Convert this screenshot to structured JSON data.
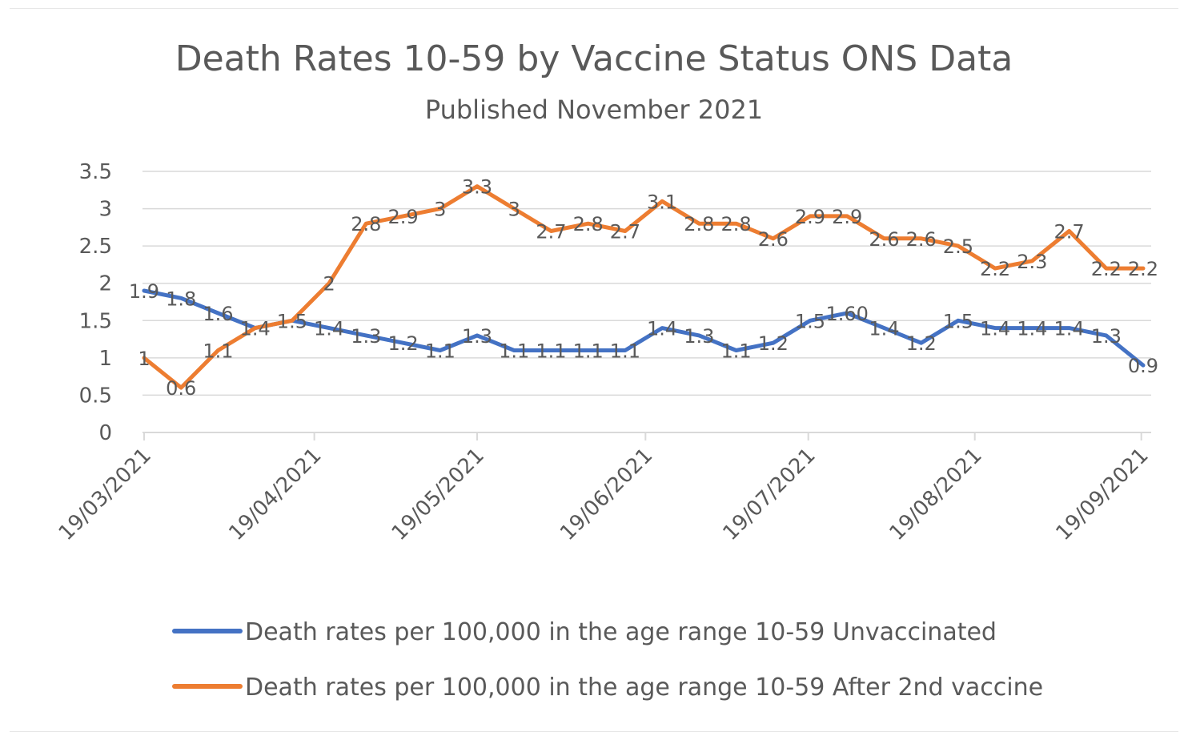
{
  "chart_data": {
    "type": "line",
    "title": "Death Rates 10-59  by Vaccine Status ONS Data",
    "subtitle": "Published November 2021",
    "xlabel": "",
    "ylabel": "",
    "ylim": [
      0,
      3.5
    ],
    "yticks": [
      "0",
      "0.5",
      "1",
      "1.5",
      "2",
      "2.5",
      "3",
      "3.5"
    ],
    "x_tick_labels": [
      "19/03/2021",
      "19/04/2021",
      "19/05/2021",
      "19/06/2021",
      "19/07/2021",
      "19/08/2021",
      "19/09/2021"
    ],
    "grid": "horizontal",
    "legend_position": "bottom",
    "series": [
      {
        "name": "Death rates per 100,000 in the age range 10-59 Unvaccinated",
        "color": "#4472c4",
        "values": [
          1.9,
          1.8,
          1.6,
          1.4,
          1.5,
          1.4,
          1.3,
          1.2,
          1.1,
          1.3,
          1.1,
          1.1,
          1.1,
          1.1,
          1.4,
          1.3,
          1.1,
          1.2,
          1.5,
          1.6,
          1.4,
          1.2,
          1.5,
          1.4,
          1.4,
          1.4,
          1.3,
          0.9
        ],
        "labels": [
          "1.9",
          "1.8",
          "1.6",
          "1.4",
          "1.5",
          "1.4",
          "1.3",
          "1.2",
          "1.1",
          "1.3",
          "1.1",
          "1.1",
          "1.1",
          "1.1",
          "1.4",
          "1.3",
          "1.1",
          "1.2",
          "1.5",
          "1.60",
          "1.4",
          "1.2",
          "1.5",
          "1.4",
          "1.4",
          "1.4",
          "1.3",
          "0.9"
        ]
      },
      {
        "name": "Death rates per 100,000 in the age range 10-59 After 2nd  vaccine",
        "color": "#ed7d31",
        "values": [
          1,
          0.6,
          1.1,
          1.4,
          1.5,
          2,
          2.8,
          2.9,
          3,
          3.3,
          3,
          2.7,
          2.8,
          2.7,
          3.1,
          2.8,
          2.8,
          2.6,
          2.9,
          2.9,
          2.6,
          2.6,
          2.5,
          2.2,
          2.3,
          2.7,
          2.2,
          2.2
        ],
        "labels": [
          "1",
          "0.6",
          "1.1",
          "",
          "",
          "2",
          "2.8",
          "2.9",
          "3",
          "3.3",
          "3",
          "2.7",
          "2.8",
          "2.7",
          "3.1",
          "2.8",
          "2.8",
          "2.6",
          "2.9",
          "2.9",
          "2.6",
          "2.6",
          "2.5",
          "2.2",
          "2.3",
          "2.7",
          "2.2",
          "2.2"
        ]
      }
    ]
  }
}
